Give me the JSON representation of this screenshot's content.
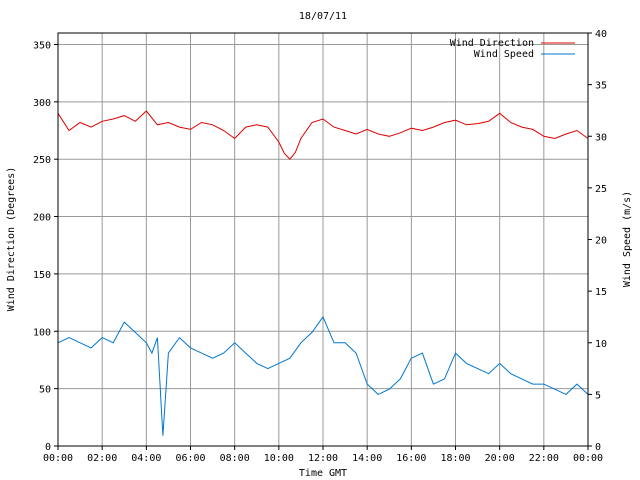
{
  "chart_data": {
    "type": "line",
    "title": "18/07/11",
    "xlabel": "Time GMT",
    "ylabel_left": "Wind Direction (Degrees)",
    "ylabel_right": "Wind Speed (m/s)",
    "xlim": [
      0,
      24
    ],
    "ylim_left": [
      0,
      360
    ],
    "ylim_right": [
      0,
      40
    ],
    "x_ticks": [
      "00:00",
      "02:00",
      "04:00",
      "06:00",
      "08:00",
      "10:00",
      "12:00",
      "14:00",
      "16:00",
      "18:00",
      "20:00",
      "22:00",
      "00:00"
    ],
    "y_ticks_left": [
      0,
      50,
      100,
      150,
      200,
      250,
      300,
      350
    ],
    "y_ticks_right": [
      0,
      5,
      10,
      15,
      20,
      25,
      30,
      35,
      40
    ],
    "grid": true,
    "legend_position": "top-right",
    "series": [
      {
        "name": "Wind Direction",
        "axis": "left",
        "color": "#dd0000",
        "x": [
          0,
          0.5,
          1,
          1.5,
          2,
          2.5,
          3,
          3.5,
          4,
          4.5,
          5,
          5.5,
          6,
          6.5,
          7,
          7.5,
          8,
          8.5,
          9,
          9.5,
          10,
          10.25,
          10.5,
          10.75,
          11,
          11.5,
          12,
          12.5,
          13,
          13.5,
          14,
          14.5,
          15,
          15.5,
          16,
          16.5,
          17,
          17.5,
          18,
          18.5,
          19,
          19.5,
          20,
          20.5,
          21,
          21.5,
          22,
          22.5,
          23,
          23.5,
          24
        ],
        "values": [
          290,
          275,
          282,
          278,
          283,
          285,
          288,
          283,
          292,
          280,
          282,
          278,
          276,
          282,
          280,
          275,
          268,
          278,
          280,
          278,
          265,
          255,
          250,
          256,
          268,
          282,
          285,
          278,
          275,
          272,
          276,
          272,
          270,
          273,
          277,
          275,
          278,
          282,
          284,
          280,
          281,
          283,
          290,
          282,
          278,
          276,
          270,
          268,
          272,
          275,
          268
        ]
      },
      {
        "name": "Wind Speed",
        "axis": "right",
        "color": "#0077cc",
        "x": [
          0,
          0.5,
          1,
          1.5,
          2,
          2.5,
          3,
          3.5,
          4,
          4.25,
          4.5,
          4.75,
          5,
          5.5,
          6,
          6.5,
          7,
          7.5,
          8,
          8.5,
          9,
          9.5,
          10,
          10.5,
          11,
          11.5,
          12,
          12.5,
          13,
          13.5,
          14,
          14.5,
          15,
          15.5,
          16,
          16.5,
          17,
          17.5,
          18,
          18.5,
          19,
          19.5,
          20,
          20.5,
          21,
          21.5,
          22,
          22.5,
          23,
          23.5,
          24
        ],
        "values": [
          10,
          10.5,
          10,
          9.5,
          10.5,
          10,
          12,
          11,
          10,
          9,
          10.5,
          1,
          9,
          10.5,
          9.5,
          9,
          8.5,
          9,
          10,
          9,
          8,
          7.5,
          8,
          8.5,
          10,
          11,
          12.5,
          10,
          10,
          9,
          6,
          5,
          5.5,
          6.5,
          8.5,
          9,
          6,
          6.5,
          9,
          8,
          7.5,
          7,
          8,
          7,
          6.5,
          6,
          6,
          5.5,
          5,
          6,
          5
        ]
      }
    ]
  }
}
